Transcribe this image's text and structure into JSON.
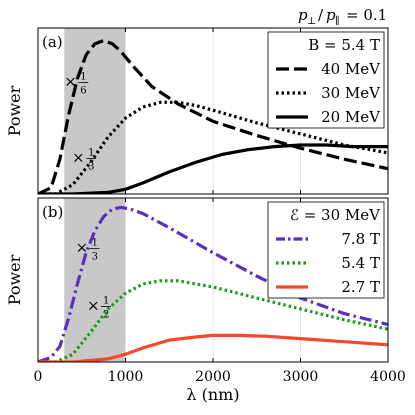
{
  "header_ratio": {
    "lhs": "p",
    "lhs_sub": "⊥",
    "rhs": "p",
    "rhs_sub": "∥",
    "value": "= 0.1"
  },
  "colors": {
    "shade": "#c8c8c8",
    "grid": "#e6e6e6",
    "black": "#000000",
    "purple": "#5a2fbf",
    "green": "#1a9a1a",
    "red": "#f04a2a"
  },
  "chart_data": [
    {
      "type": "line",
      "panel_label": "(a)",
      "title": "B = 5.4 T",
      "ylabel": "Power",
      "xlabel": "",
      "xlim": [
        0,
        4000
      ],
      "ylim": [
        0,
        1.05
      ],
      "shaded_x": [
        300,
        1000
      ],
      "legend": "top-right",
      "series": [
        {
          "name": "40 MeV",
          "style": "dash",
          "color": "#000000",
          "x": [
            0,
            150,
            250,
            350,
            450,
            550,
            650,
            750,
            850,
            950,
            1100,
            1300,
            1600,
            2000,
            2500,
            3000,
            3500,
            4000
          ],
          "y": [
            0,
            0.04,
            0.22,
            0.5,
            0.73,
            0.88,
            0.95,
            0.97,
            0.95,
            0.9,
            0.8,
            0.68,
            0.57,
            0.46,
            0.37,
            0.29,
            0.22,
            0.16
          ]
        },
        {
          "name": "30 MeV",
          "style": "dot",
          "color": "#000000",
          "x": [
            0,
            200,
            400,
            600,
            800,
            1000,
            1200,
            1400,
            1600,
            1800,
            2000,
            2500,
            3000,
            3500,
            4000
          ],
          "y": [
            0,
            0.0,
            0.06,
            0.2,
            0.36,
            0.48,
            0.55,
            0.58,
            0.58,
            0.56,
            0.53,
            0.45,
            0.38,
            0.31,
            0.26
          ]
        },
        {
          "name": "20 MeV",
          "style": "solid",
          "color": "#000000",
          "x": [
            0,
            400,
            800,
            1000,
            1200,
            1500,
            1800,
            2100,
            2400,
            2700,
            3000,
            3300,
            3600,
            4000
          ],
          "y": [
            0,
            0.0,
            0.01,
            0.03,
            0.07,
            0.14,
            0.2,
            0.25,
            0.28,
            0.3,
            0.31,
            0.31,
            0.3,
            0.3
          ]
        }
      ],
      "annotations": [
        {
          "text": "×",
          "fraction": [
            "1",
            "6"
          ],
          "x": 300,
          "y": 0.68
        },
        {
          "text": "×",
          "fraction": [
            "1",
            "3"
          ],
          "x": 390,
          "y": 0.2
        }
      ]
    },
    {
      "type": "line",
      "panel_label": "(b)",
      "title": "ℰ = 30 MeV",
      "ylabel": "Power",
      "xlabel": "λ (nm)",
      "xlim": [
        0,
        4000
      ],
      "xticks": [
        0,
        1000,
        2000,
        3000,
        4000
      ],
      "ylim": [
        0,
        1.05
      ],
      "shaded_x": [
        300,
        1000
      ],
      "legend": "top-right",
      "series": [
        {
          "name": "7.8 T",
          "style": "dashdot",
          "color": "#5a2fbf",
          "x": [
            0,
            150,
            250,
            350,
            450,
            550,
            650,
            750,
            850,
            950,
            1050,
            1200,
            1500,
            2000,
            2500,
            3000,
            3500,
            4000
          ],
          "y": [
            0,
            0.03,
            0.1,
            0.28,
            0.5,
            0.7,
            0.84,
            0.93,
            0.98,
            0.99,
            0.98,
            0.95,
            0.86,
            0.7,
            0.55,
            0.41,
            0.31,
            0.24
          ]
        },
        {
          "name": "5.4 T",
          "style": "dot",
          "color": "#1a9a1a",
          "x": [
            0,
            200,
            400,
            600,
            800,
            1000,
            1200,
            1400,
            1600,
            1800,
            2000,
            2500,
            3000,
            3500,
            4000
          ],
          "y": [
            0,
            0.0,
            0.05,
            0.19,
            0.34,
            0.44,
            0.5,
            0.52,
            0.52,
            0.5,
            0.48,
            0.41,
            0.34,
            0.27,
            0.21
          ]
        },
        {
          "name": "2.7 T",
          "style": "solid",
          "color": "#f04a2a",
          "x": [
            0,
            400,
            800,
            1000,
            1200,
            1500,
            1800,
            2000,
            2300,
            2600,
            3000,
            3500,
            4000
          ],
          "y": [
            0,
            0.0,
            0.02,
            0.05,
            0.09,
            0.14,
            0.16,
            0.17,
            0.17,
            0.165,
            0.15,
            0.13,
            0.11
          ]
        }
      ],
      "annotations": [
        {
          "text": "×",
          "fraction": [
            "1",
            "3"
          ],
          "x": 430,
          "y": 0.7
        },
        {
          "text": "×",
          "fraction": [
            "1",
            "2"
          ],
          "x": 560,
          "y": 0.33
        }
      ]
    }
  ]
}
